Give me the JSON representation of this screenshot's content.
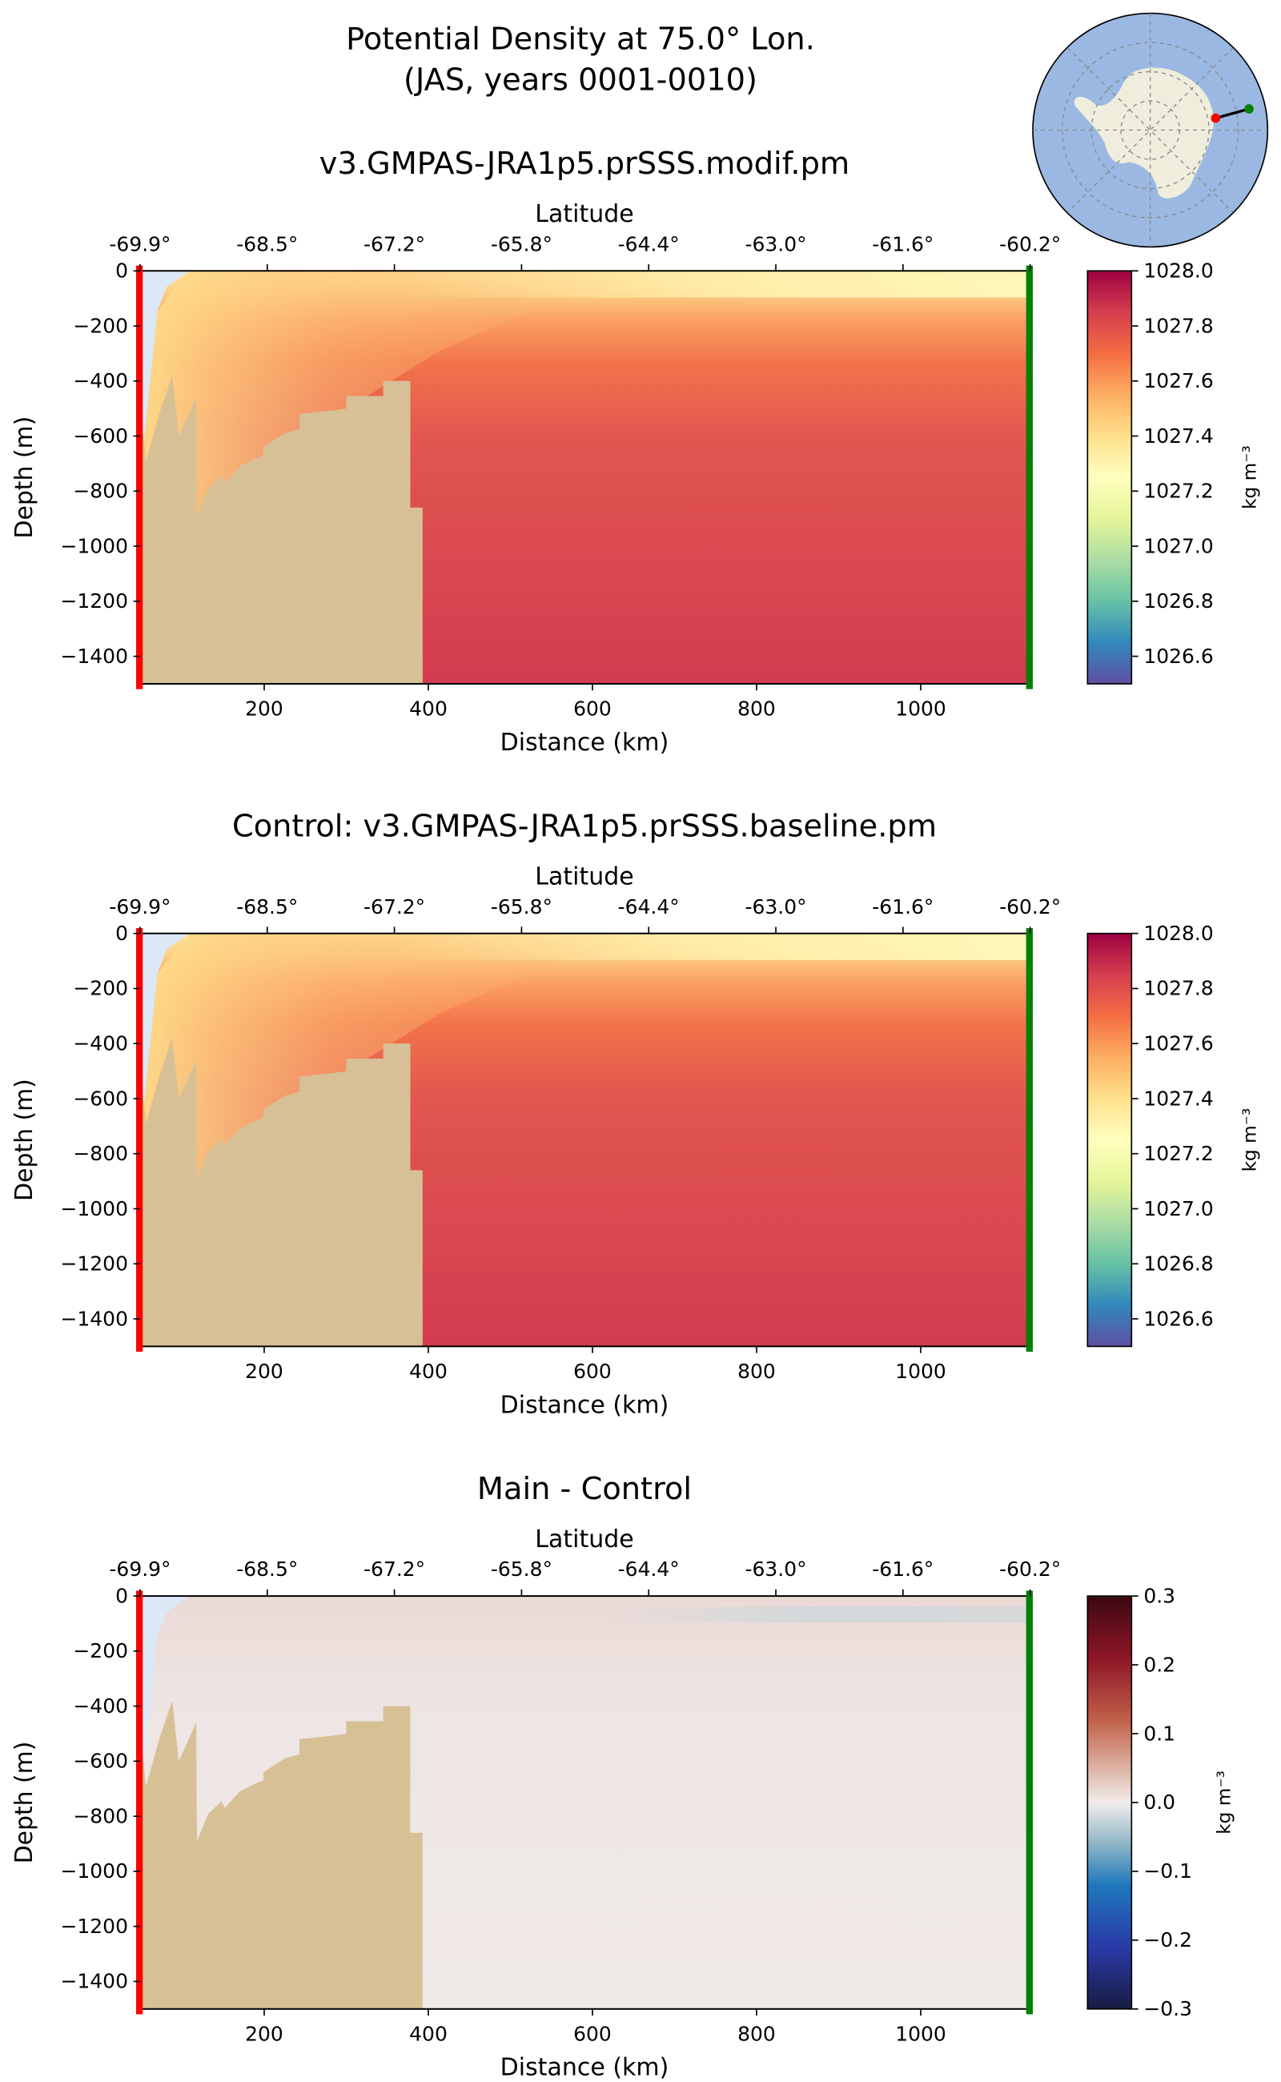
{
  "title": {
    "line1": "Potential Density at 75.0° Lon.",
    "line2": "(JAS, years 0001-0010)"
  },
  "chart_data": [
    {
      "type": "heatmap",
      "title": "v3.GMPAS-JRA1p5.prSSS.modif.pm",
      "xlabel": "Distance (km)",
      "ylabel": "Depth (m)",
      "top_xlabel": "Latitude",
      "xlim": [
        48.8,
        1133
      ],
      "ylim": [
        -1500,
        0
      ],
      "xticks": [
        200,
        400,
        600,
        800,
        1000
      ],
      "yticks": [
        0,
        -200,
        -400,
        -600,
        -800,
        -1000,
        -1200,
        -1400
      ],
      "lat_ticks": [
        "-69.9°",
        "-68.5°",
        "-67.2°",
        "-65.8°",
        "-64.4°",
        "-63.0°",
        "-61.6°",
        "-60.2°"
      ],
      "colorbar": {
        "label": "kg m⁻³",
        "range": [
          1026.5,
          1028.0
        ],
        "ticks": [
          1028.0,
          1027.8,
          1027.6,
          1027.4,
          1027.2,
          1027.0,
          1026.8,
          1026.6
        ],
        "colormap": "Spectral_r"
      },
      "field": {
        "surface": 1027.35,
        "depth_200": 1027.7,
        "bottom": 1027.85
      }
    },
    {
      "type": "heatmap",
      "title": "Control: v3.GMPAS-JRA1p5.prSSS.baseline.pm",
      "xlabel": "Distance (km)",
      "ylabel": "Depth (m)",
      "top_xlabel": "Latitude",
      "xlim": [
        48.8,
        1133
      ],
      "ylim": [
        -1500,
        0
      ],
      "xticks": [
        200,
        400,
        600,
        800,
        1000
      ],
      "yticks": [
        0,
        -200,
        -400,
        -600,
        -800,
        -1000,
        -1200,
        -1400
      ],
      "lat_ticks": [
        "-69.9°",
        "-68.5°",
        "-67.2°",
        "-65.8°",
        "-64.4°",
        "-63.0°",
        "-61.6°",
        "-60.2°"
      ],
      "colorbar": {
        "label": "kg m⁻³",
        "range": [
          1026.5,
          1028.0
        ],
        "ticks": [
          1028.0,
          1027.8,
          1027.6,
          1027.4,
          1027.2,
          1027.0,
          1026.8,
          1026.6
        ],
        "colormap": "Spectral_r"
      },
      "field": {
        "surface": 1027.35,
        "depth_200": 1027.7,
        "bottom": 1027.85
      }
    },
    {
      "type": "heatmap",
      "title": "Main - Control",
      "xlabel": "Distance (km)",
      "ylabel": "Depth (m)",
      "top_xlabel": "Latitude",
      "xlim": [
        48.8,
        1133
      ],
      "ylim": [
        -1500,
        0
      ],
      "xticks": [
        200,
        400,
        600,
        800,
        1000
      ],
      "yticks": [
        0,
        -200,
        -400,
        -600,
        -800,
        -1000,
        -1200,
        -1400
      ],
      "lat_ticks": [
        "-69.9°",
        "-68.5°",
        "-67.2°",
        "-65.8°",
        "-64.4°",
        "-63.0°",
        "-61.6°",
        "-60.2°"
      ],
      "colorbar": {
        "label": "kg m⁻³",
        "range": [
          -0.3,
          0.3
        ],
        "ticks": [
          0.3,
          0.2,
          0.1,
          0.0,
          -0.1,
          -0.2,
          -0.3
        ],
        "colormap": "balance"
      },
      "field": {
        "surface": 0.02,
        "depth_200": 0.01,
        "bottom": 0.0
      }
    }
  ],
  "bathymetry": [
    [
      50,
      -1500
    ],
    [
      50,
      -520
    ],
    [
      56,
      -690
    ],
    [
      72,
      -520
    ],
    [
      88,
      -380
    ],
    [
      96,
      -600
    ],
    [
      117,
      -460
    ],
    [
      118,
      -890
    ],
    [
      132,
      -790
    ],
    [
      148,
      -745
    ],
    [
      152,
      -770
    ],
    [
      170,
      -710
    ],
    [
      190,
      -680
    ],
    [
      199,
      -670
    ],
    [
      199,
      -640
    ],
    [
      225,
      -590
    ],
    [
      243,
      -575
    ],
    [
      243,
      -520
    ],
    [
      290,
      -505
    ],
    [
      300,
      -500
    ],
    [
      300,
      -455
    ],
    [
      345,
      -455
    ],
    [
      345,
      -400
    ],
    [
      378,
      -400
    ],
    [
      378,
      -860
    ],
    [
      393,
      -860
    ],
    [
      393,
      -1500
    ]
  ],
  "colors": {
    "land": "#d8c096",
    "start_marker": "#ff0000",
    "end_marker": "#008000",
    "ocean_map": "#9bb8e2",
    "antarctica": "#efeddc"
  }
}
